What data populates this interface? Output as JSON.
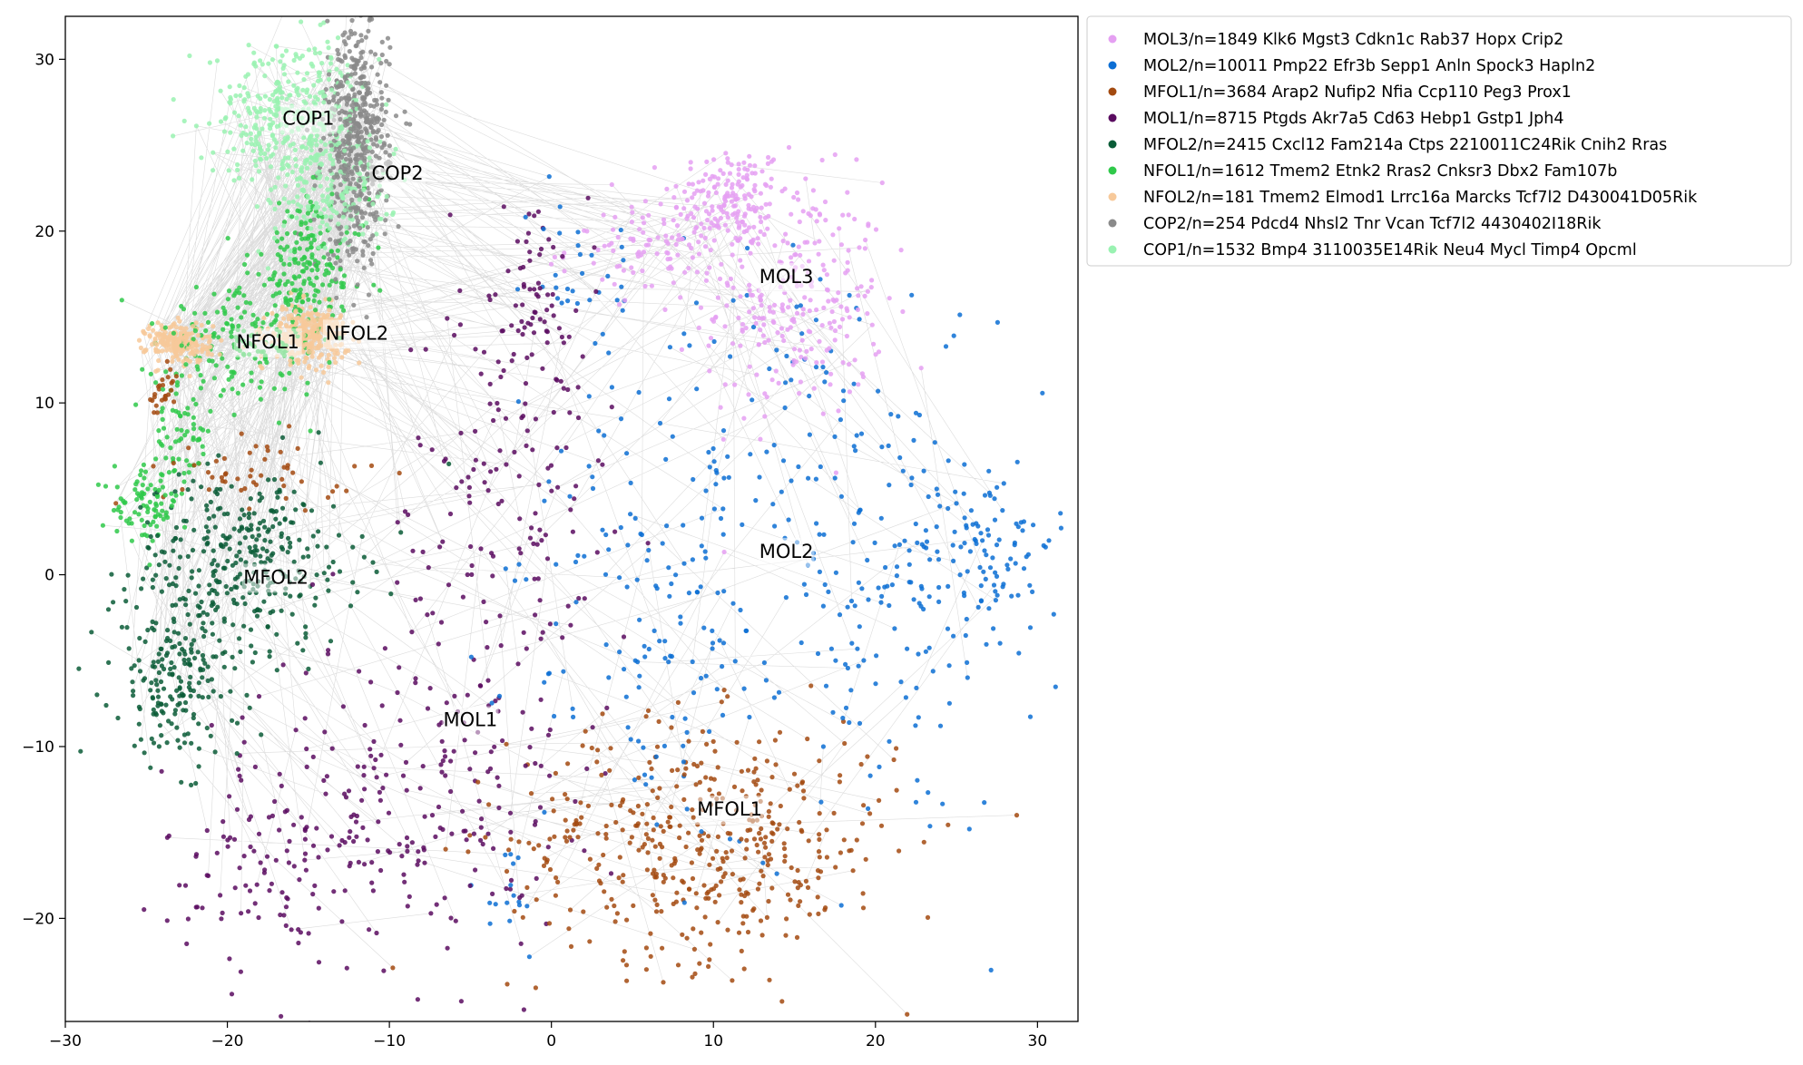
{
  "chart_data": {
    "type": "scatter",
    "xlim": [
      -30,
      32.5
    ],
    "ylim": [
      -26,
      32.5
    ],
    "x_ticks": [
      -30,
      -20,
      -10,
      0,
      10,
      20,
      30
    ],
    "y_ticks": [
      -20,
      -10,
      0,
      10,
      20,
      30
    ],
    "grid": false,
    "legend_placement": "outside upper right",
    "connectivity_edges": true,
    "edge_color": "#9a9a9a",
    "series": [
      {
        "name": "MOL3/n=1849 Klk6 Mgst3 Cdkn1c Rab37 Hopx Crip2",
        "label": "MOL3",
        "color": "#e5a0f2",
        "label_pos": [
          14.5,
          17.3
        ],
        "blobs": [
          [
            11,
            22,
            1.8,
            1.5,
            0.3
          ],
          [
            15,
            16,
            2.8,
            3.5,
            0.5
          ],
          [
            7,
            19,
            3,
            1.3,
            0.2
          ]
        ]
      },
      {
        "name": "MOL2/n=10011 Pmp22 Efr3b Sepp1 Anln Spock3 Hapln2",
        "label": "MOL2",
        "color": "#0c6ed4",
        "label_pos": [
          14.5,
          1.3
        ],
        "blobs": [
          [
            11,
            6,
            5.5,
            6.5,
            0.3
          ],
          [
            21,
            -2,
            4.5,
            7,
            0.3
          ],
          [
            27,
            2,
            2,
            2.5,
            0.15
          ],
          [
            6,
            -6,
            3.5,
            5,
            0.15
          ],
          [
            2,
            18,
            1.8,
            2.5,
            0.05
          ],
          [
            -3,
            -19,
            1.5,
            2,
            0.03
          ]
        ]
      },
      {
        "name": "MFOL1/n=3684 Arap2 Nufip2 Nfia Ccp110 Peg3 Prox1",
        "label": "MFOL1",
        "color": "#a34a10",
        "label_pos": [
          11,
          -13.7
        ],
        "blobs": [
          [
            9.5,
            -15.5,
            6,
            3.5,
            0.85
          ],
          [
            -18,
            6,
            3,
            1,
            0.1
          ],
          [
            -24,
            10.5,
            0.5,
            0.8,
            0.05
          ]
        ]
      },
      {
        "name": "MOL1/n=8715 Ptgds Akr7a5 Cd63 Hebp1 Gstp1 Jph4",
        "label": "MOL1",
        "color": "#5a0c60",
        "label_pos": [
          -5,
          -8.5
        ],
        "blobs": [
          [
            -3,
            2,
            3.5,
            8,
            0.3
          ],
          [
            -9,
            -13,
            5,
            5,
            0.35
          ],
          [
            -17,
            -17,
            3.5,
            3,
            0.2
          ],
          [
            -1,
            15,
            1.5,
            3.5,
            0.15
          ]
        ]
      },
      {
        "name": "MFOL2/n=2415 Cxcl12 Fam214a Ctps 2210011C24Rik Cnih2 Rras",
        "label": "MFOL2",
        "color": "#0a5c37",
        "label_pos": [
          -17,
          -0.2
        ],
        "blobs": [
          [
            -19,
            1,
            3.5,
            2.5,
            0.6
          ],
          [
            -23,
            -6,
            2,
            2.5,
            0.4
          ]
        ]
      },
      {
        "name": "NFOL1/n=1612 Tmem2 Etnk2 Rras2 Cnksr3 Dbx2 Fam107b",
        "label": "NFOL1",
        "color": "#2fc94a",
        "label_pos": [
          -17.5,
          13.5
        ],
        "blobs": [
          [
            -15,
            18,
            1.8,
            2,
            0.35
          ],
          [
            -19,
            13.5,
            2.5,
            1.5,
            0.35
          ],
          [
            -23,
            8,
            1,
            2,
            0.15
          ],
          [
            -25,
            4,
            1,
            1,
            0.15
          ]
        ]
      },
      {
        "name": "NFOL2/n=181 Tmem2 Elmod1 Lrrc16a Marcks Tcf7l2 D430041D05Rik",
        "label": "NFOL2",
        "color": "#f7c99a",
        "label_pos": [
          -12,
          14
        ],
        "blobs": [
          [
            -15,
            14,
            1.2,
            0.8,
            0.6
          ],
          [
            -23,
            13.5,
            1,
            0.6,
            0.4
          ]
        ]
      },
      {
        "name": "COP2/n=254 Pdcd4 Nhsl2 Tnr Vcan Tcf7l2 4430402I18Rik",
        "label": "COP2",
        "color": "#8a8a8a",
        "label_pos": [
          -9.5,
          23.3
        ],
        "blobs": [
          [
            -12,
            25,
            1,
            3.5,
            1
          ]
        ]
      },
      {
        "name": "COP1/n=1532 Bmp4 3110035E14Rik Neu4 Mycl Timp4 Opcml",
        "label": "COP1",
        "color": "#9af2b2",
        "label_pos": [
          -15,
          26.5
        ],
        "blobs": [
          [
            -16,
            27,
            2.5,
            2,
            0.65
          ],
          [
            -14,
            22.5,
            2,
            2,
            0.35
          ]
        ]
      }
    ]
  }
}
